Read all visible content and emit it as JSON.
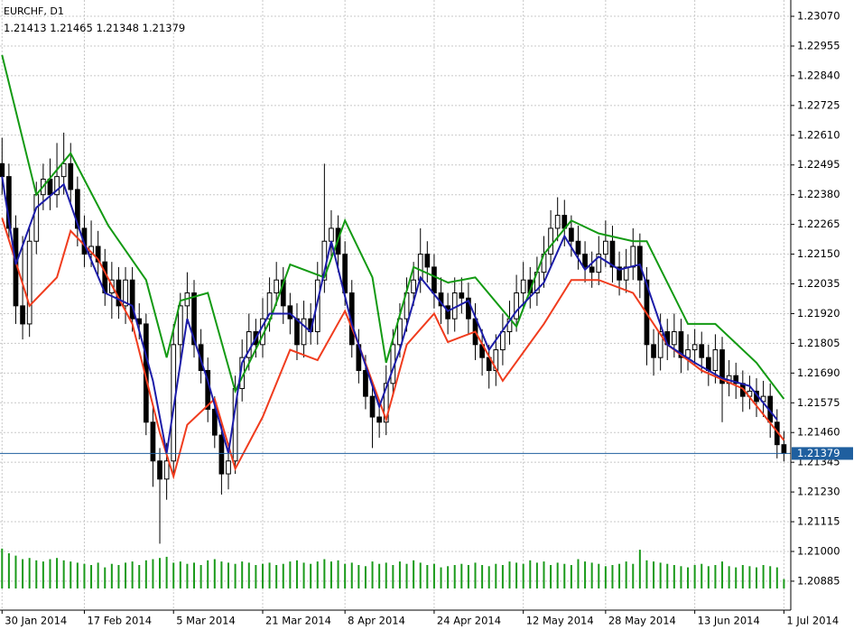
{
  "chart_data": {
    "type": "candlestick",
    "title": "EURCHF, D1",
    "xlim": [
      -0.3,
      115
    ],
    "ylim": [
      1.20773,
      1.23133
    ],
    "grid": true,
    "bull_color": "#ffffff",
    "bear_color": "#000000",
    "volume_color": "#1a9a1a",
    "price_line_color": "#1f5f9f",
    "xticks": [
      {
        "value": 0,
        "label": "30 Jan 2014"
      },
      {
        "value": 12,
        "label": "17 Feb 2014"
      },
      {
        "value": 25,
        "label": "5 Mar 2014"
      },
      {
        "value": 38,
        "label": "21 Mar 2014"
      },
      {
        "value": 50,
        "label": "8 Apr 2014"
      },
      {
        "value": 63,
        "label": "24 Apr 2014"
      },
      {
        "value": 76,
        "label": "12 May 2014"
      },
      {
        "value": 88,
        "label": "28 May 2014"
      },
      {
        "value": 101,
        "label": "13 Jun 2014"
      },
      {
        "value": 114,
        "label": "1 Jul 2014"
      }
    ],
    "yticks": [
      {
        "value": 1.2307,
        "label": "1.23070"
      },
      1.22955,
      {
        "value": 1.2284,
        "label": "1.22840"
      },
      1.22725,
      {
        "value": 1.2261,
        "label": "1.22610"
      },
      1.22495,
      {
        "value": 1.2238,
        "label": "1.22380"
      },
      1.22265,
      {
        "value": 1.2215,
        "label": "1.22150"
      },
      1.22035,
      {
        "value": 1.2192,
        "label": "1.21920"
      },
      1.21805,
      {
        "value": 1.2169,
        "label": "1.21690"
      },
      1.21575,
      {
        "value": 1.2146,
        "label": "1.21460"
      },
      1.21345,
      {
        "value": 1.2123,
        "label": "1.21230"
      },
      1.21115,
      {
        "value": 1.21,
        "label": "1.21000"
      },
      1.20885
    ],
    "ohlc": [
      [
        1.225,
        1.226,
        1.2238,
        1.2245
      ],
      [
        1.2245,
        1.225,
        1.222,
        1.2225
      ],
      [
        1.2225,
        1.223,
        1.2188,
        1.2195
      ],
      [
        1.2195,
        1.2222,
        1.2182,
        1.2188
      ],
      [
        1.2188,
        1.2226,
        1.2183,
        1.222
      ],
      [
        1.222,
        1.2243,
        1.2215,
        1.2238
      ],
      [
        1.2238,
        1.225,
        1.2232,
        1.2244
      ],
      [
        1.2244,
        1.2252,
        1.2232,
        1.2238
      ],
      [
        1.2238,
        1.2258,
        1.2233,
        1.2245
      ],
      [
        1.2245,
        1.2262,
        1.2238,
        1.225
      ],
      [
        1.225,
        1.2258,
        1.2235,
        1.224
      ],
      [
        1.224,
        1.2245,
        1.2218,
        1.2225
      ],
      [
        1.2225,
        1.223,
        1.221,
        1.2215
      ],
      [
        1.2215,
        1.2228,
        1.221,
        1.2218
      ],
      [
        1.2218,
        1.2224,
        1.2207,
        1.2212
      ],
      [
        1.2212,
        1.2217,
        1.2195,
        1.22
      ],
      [
        1.22,
        1.2212,
        1.219,
        1.2205
      ],
      [
        1.2205,
        1.221,
        1.219,
        1.2195
      ],
      [
        1.2195,
        1.221,
        1.2188,
        1.2205
      ],
      [
        1.2205,
        1.221,
        1.2185,
        1.219
      ],
      [
        1.219,
        1.2196,
        1.2182,
        1.2188
      ],
      [
        1.2188,
        1.2192,
        1.2145,
        1.215
      ],
      [
        1.215,
        1.2156,
        1.2125,
        1.2135
      ],
      [
        1.2135,
        1.214,
        1.2103,
        1.2128
      ],
      [
        1.2128,
        1.2142,
        1.212,
        1.2135
      ],
      [
        1.2135,
        1.2188,
        1.213,
        1.218
      ],
      [
        1.218,
        1.22,
        1.2172,
        1.2195
      ],
      [
        1.2195,
        1.2208,
        1.2188,
        1.22
      ],
      [
        1.22,
        1.2205,
        1.2175,
        1.218
      ],
      [
        1.218,
        1.2186,
        1.2165,
        1.217
      ],
      [
        1.217,
        1.2175,
        1.215,
        1.2155
      ],
      [
        1.2155,
        1.216,
        1.214,
        1.2145
      ],
      [
        1.2145,
        1.215,
        1.2122,
        1.213
      ],
      [
        1.213,
        1.2142,
        1.2124,
        1.2135
      ],
      [
        1.2135,
        1.2168,
        1.213,
        1.2163
      ],
      [
        1.2163,
        1.2182,
        1.2158,
        1.2175
      ],
      [
        1.2175,
        1.2192,
        1.217,
        1.2185
      ],
      [
        1.2185,
        1.219,
        1.2175,
        1.218
      ],
      [
        1.218,
        1.2198,
        1.2175,
        1.219
      ],
      [
        1.219,
        1.2206,
        1.2185,
        1.22
      ],
      [
        1.22,
        1.2212,
        1.2195,
        1.2205
      ],
      [
        1.2205,
        1.221,
        1.2188,
        1.2195
      ],
      [
        1.2195,
        1.22,
        1.2184,
        1.219
      ],
      [
        1.219,
        1.2196,
        1.2174,
        1.218
      ],
      [
        1.218,
        1.2197,
        1.2175,
        1.219
      ],
      [
        1.219,
        1.2196,
        1.218,
        1.2185
      ],
      [
        1.2185,
        1.2212,
        1.218,
        1.2205
      ],
      [
        1.2205,
        1.225,
        1.22,
        1.222
      ],
      [
        1.222,
        1.2232,
        1.2214,
        1.2225
      ],
      [
        1.2225,
        1.223,
        1.2208,
        1.2215
      ],
      [
        1.2215,
        1.222,
        1.2195,
        1.22
      ],
      [
        1.22,
        1.2205,
        1.2175,
        1.218
      ],
      [
        1.218,
        1.2186,
        1.2165,
        1.217
      ],
      [
        1.217,
        1.2176,
        1.2155,
        1.216
      ],
      [
        1.216,
        1.2166,
        1.214,
        1.2152
      ],
      [
        1.2152,
        1.2158,
        1.2144,
        1.215
      ],
      [
        1.215,
        1.2172,
        1.2145,
        1.2165
      ],
      [
        1.2165,
        1.2186,
        1.216,
        1.218
      ],
      [
        1.218,
        1.2196,
        1.2175,
        1.219
      ],
      [
        1.219,
        1.2206,
        1.2185,
        1.22
      ],
      [
        1.22,
        1.2212,
        1.2195,
        1.2205
      ],
      [
        1.2205,
        1.2225,
        1.22,
        1.2215
      ],
      [
        1.2215,
        1.222,
        1.2204,
        1.221
      ],
      [
        1.221,
        1.2215,
        1.2194,
        1.22
      ],
      [
        1.22,
        1.2206,
        1.2188,
        1.2195
      ],
      [
        1.2195,
        1.22,
        1.2184,
        1.219
      ],
      [
        1.219,
        1.2206,
        1.2185,
        1.22
      ],
      [
        1.22,
        1.2206,
        1.2192,
        1.2198
      ],
      [
        1.2198,
        1.2204,
        1.2184,
        1.219
      ],
      [
        1.219,
        1.2196,
        1.2174,
        1.218
      ],
      [
        1.218,
        1.2186,
        1.2168,
        1.2175
      ],
      [
        1.2175,
        1.218,
        1.2163,
        1.217
      ],
      [
        1.217,
        1.2184,
        1.2164,
        1.2178
      ],
      [
        1.2178,
        1.2192,
        1.2172,
        1.2185
      ],
      [
        1.2185,
        1.2197,
        1.218,
        1.219
      ],
      [
        1.219,
        1.2207,
        1.2185,
        1.22
      ],
      [
        1.22,
        1.2212,
        1.2194,
        1.2205
      ],
      [
        1.2205,
        1.221,
        1.2194,
        1.22
      ],
      [
        1.22,
        1.2214,
        1.2195,
        1.2208
      ],
      [
        1.2208,
        1.2222,
        1.2202,
        1.2215
      ],
      [
        1.2215,
        1.2232,
        1.221,
        1.2225
      ],
      [
        1.2225,
        1.2237,
        1.222,
        1.223
      ],
      [
        1.223,
        1.2236,
        1.2218,
        1.2225
      ],
      [
        1.2225,
        1.223,
        1.2214,
        1.222
      ],
      [
        1.222,
        1.2226,
        1.2209,
        1.2215
      ],
      [
        1.2215,
        1.222,
        1.2204,
        1.221
      ],
      [
        1.221,
        1.2216,
        1.2202,
        1.2208
      ],
      [
        1.2208,
        1.2222,
        1.2203,
        1.2215
      ],
      [
        1.2215,
        1.2228,
        1.221,
        1.222
      ],
      [
        1.222,
        1.2226,
        1.2204,
        1.221
      ],
      [
        1.221,
        1.2216,
        1.2199,
        1.2205
      ],
      [
        1.2205,
        1.2217,
        1.22,
        1.221
      ],
      [
        1.221,
        1.2225,
        1.2205,
        1.2218
      ],
      [
        1.2218,
        1.2223,
        1.2198,
        1.2205
      ],
      [
        1.2205,
        1.221,
        1.2172,
        1.218
      ],
      [
        1.218,
        1.2186,
        1.2168,
        1.2175
      ],
      [
        1.2175,
        1.2192,
        1.217,
        1.2185
      ],
      [
        1.2185,
        1.219,
        1.2174,
        1.218
      ],
      [
        1.218,
        1.2192,
        1.2175,
        1.2185
      ],
      [
        1.2185,
        1.219,
        1.2169,
        1.2175
      ],
      [
        1.2175,
        1.2184,
        1.217,
        1.2178
      ],
      [
        1.2178,
        1.2186,
        1.2172,
        1.218
      ],
      [
        1.218,
        1.2185,
        1.2169,
        1.2175
      ],
      [
        1.2175,
        1.218,
        1.2164,
        1.217
      ],
      [
        1.217,
        1.2184,
        1.2165,
        1.2178
      ],
      [
        1.2178,
        1.2183,
        1.215,
        1.2165
      ],
      [
        1.2165,
        1.2174,
        1.216,
        1.2168
      ],
      [
        1.2168,
        1.2173,
        1.2159,
        1.2165
      ],
      [
        1.2165,
        1.217,
        1.2154,
        1.216
      ],
      [
        1.216,
        1.2168,
        1.2155,
        1.2162
      ],
      [
        1.2162,
        1.2167,
        1.2152,
        1.2158
      ],
      [
        1.2158,
        1.2166,
        1.2152,
        1.216
      ],
      [
        1.216,
        1.2165,
        1.2144,
        1.215
      ],
      [
        1.215,
        1.2155,
        1.2136,
        1.21413
      ],
      [
        1.21413,
        1.21465,
        1.21348,
        1.21379
      ]
    ],
    "volume": [
      340,
      300,
      280,
      250,
      260,
      240,
      230,
      250,
      260,
      240,
      230,
      220,
      210,
      200,
      220,
      180,
      210,
      200,
      220,
      230,
      200,
      240,
      250,
      260,
      270,
      220,
      230,
      210,
      220,
      200,
      240,
      250,
      230,
      220,
      210,
      230,
      220,
      200,
      210,
      220,
      200,
      210,
      230,
      240,
      220,
      210,
      230,
      250,
      230,
      240,
      210,
      220,
      200,
      190,
      230,
      210,
      220,
      200,
      230,
      210,
      240,
      220,
      200,
      210,
      180,
      190,
      200,
      210,
      200,
      220,
      200,
      190,
      210,
      200,
      230,
      220,
      210,
      240,
      220,
      230,
      200,
      220,
      210,
      200,
      250,
      230,
      220,
      210,
      190,
      200,
      210,
      230,
      210,
      330,
      240,
      230,
      220,
      210,
      200,
      190,
      180,
      200,
      210,
      190,
      200,
      230,
      190,
      180,
      200,
      190,
      180,
      200,
      190,
      180,
      80
    ],
    "lines": [
      {
        "color": "#139a13",
        "x": [
          0,
          5,
          10,
          15.5,
          21,
          24,
          26,
          30,
          34,
          39,
          42,
          47,
          50,
          54,
          56,
          60,
          65,
          69,
          75,
          79,
          83,
          87,
          92,
          94,
          100,
          104,
          110,
          114
        ],
        "values": [
          1.2292,
          1.2238,
          1.2254,
          1.2226,
          1.2205,
          1.2175,
          1.2197,
          1.22,
          1.2162,
          1.2189,
          1.2211,
          1.2206,
          1.2228,
          1.2206,
          1.2173,
          1.221,
          1.2204,
          1.2206,
          1.2187,
          1.2215,
          1.2228,
          1.2223,
          1.222,
          1.222,
          1.2188,
          1.2188,
          1.2173,
          1.2159
        ]
      },
      {
        "color": "#f03c1e",
        "x": [
          0,
          4,
          8,
          10,
          14,
          19,
          23,
          25,
          27,
          31,
          34,
          38,
          42,
          46,
          50,
          52,
          56,
          59,
          63,
          65,
          69,
          73,
          79,
          83,
          87,
          92,
          97,
          102,
          108,
          114
        ],
        "values": [
          1.2229,
          1.2195,
          1.2206,
          1.2224,
          1.2213,
          1.2188,
          1.2146,
          1.2129,
          1.2149,
          1.2159,
          1.2132,
          1.2152,
          1.2178,
          1.2174,
          1.2193,
          1.218,
          1.2151,
          1.218,
          1.2192,
          1.2181,
          1.2185,
          1.2166,
          1.2188,
          1.2205,
          1.2205,
          1.22,
          1.218,
          1.217,
          1.2163,
          1.2143
        ]
      },
      {
        "color": "#1c1ca8",
        "x": [
          0,
          2,
          5,
          9,
          12,
          15,
          19,
          22,
          24,
          27,
          30,
          33,
          35,
          39,
          42,
          45,
          48,
          51,
          55,
          58,
          61,
          65,
          68,
          71,
          75,
          79,
          82,
          85,
          87,
          90,
          93,
          97,
          101,
          105,
          109,
          113
        ],
        "values": [
          1.2245,
          1.2211,
          1.2233,
          1.2242,
          1.2219,
          1.22,
          1.2195,
          1.2166,
          1.2138,
          1.219,
          1.2166,
          1.2138,
          1.2173,
          1.2192,
          1.2192,
          1.2185,
          1.222,
          1.2188,
          1.2156,
          1.2178,
          1.2206,
          1.2193,
          1.2197,
          1.2178,
          1.2193,
          1.2204,
          1.2222,
          1.2209,
          1.2214,
          1.2209,
          1.2211,
          1.218,
          1.2173,
          1.2167,
          1.2164,
          1.2151
        ]
      }
    ]
  }
}
